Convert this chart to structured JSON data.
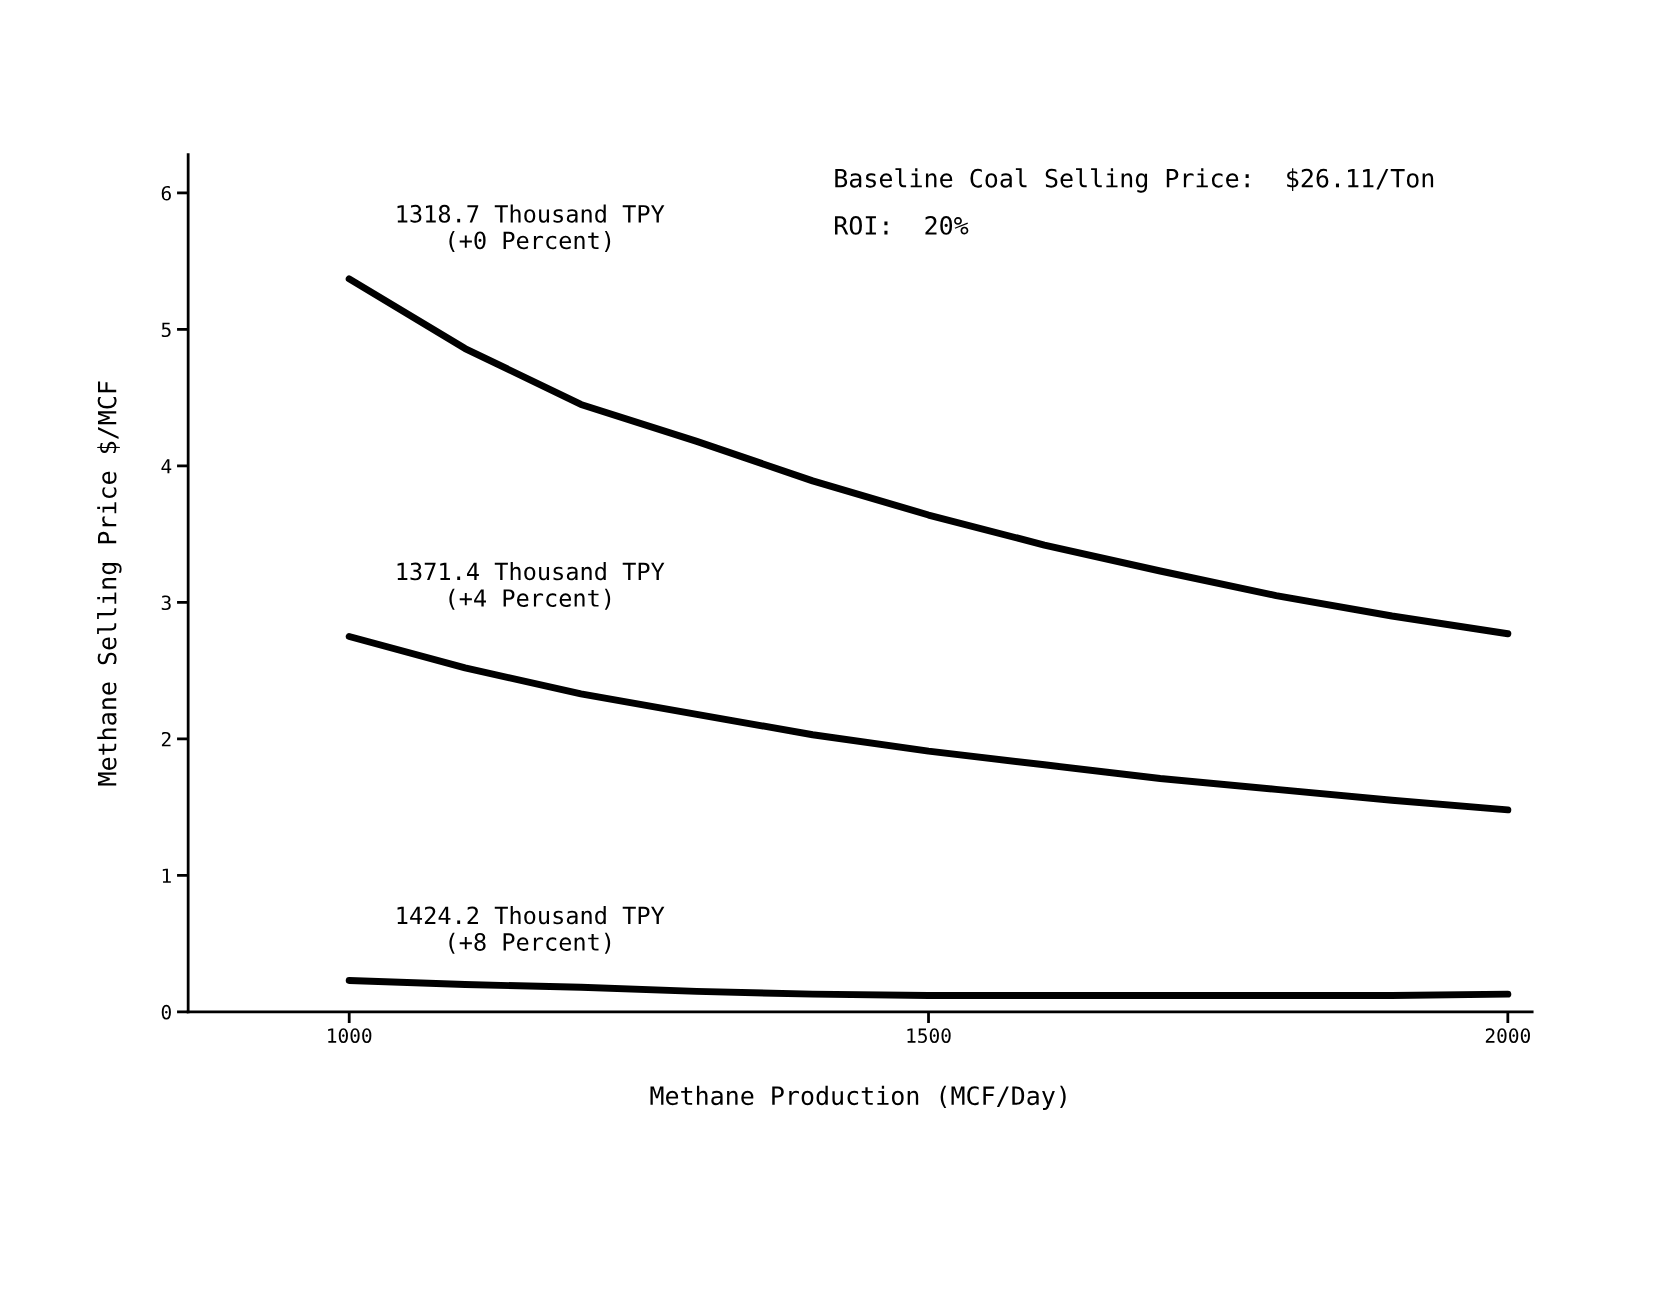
{
  "chart_data": {
    "type": "line",
    "xlabel": "Methane Production (MCF/Day)",
    "ylabel": "Methane Selling Price $/MCF",
    "annotations": [
      "Baseline Coal Selling Price:  $26.11/Ton",
      "ROI:  20%"
    ],
    "x": [
      1000,
      1100,
      1200,
      1300,
      1400,
      1500,
      1600,
      1700,
      1800,
      1900,
      2000
    ],
    "series": [
      {
        "name": "1318.7 Thousand TPY\n(+0 Percent)",
        "color": "#000000",
        "values": [
          5.37,
          4.86,
          4.45,
          4.18,
          3.89,
          3.64,
          3.42,
          3.23,
          3.05,
          2.9,
          2.77
        ]
      },
      {
        "name": "1371.4 Thousand TPY\n(+4 Percent)",
        "color": "#000000",
        "values": [
          2.75,
          2.52,
          2.33,
          2.18,
          2.03,
          1.91,
          1.81,
          1.71,
          1.63,
          1.55,
          1.48
        ]
      },
      {
        "name": "1424.2 Thousand TPY\n(+8 Percent)",
        "color": "#000000",
        "values": [
          0.23,
          0.2,
          0.18,
          0.15,
          0.13,
          0.12,
          0.12,
          0.12,
          0.12,
          0.12,
          0.13
        ]
      }
    ],
    "xlim": [
      861,
      2021
    ],
    "ylim": [
      0,
      6.28
    ],
    "xticks": [
      1000,
      1500,
      2000
    ],
    "yticks": [
      0,
      1,
      2,
      3,
      4,
      5,
      6
    ],
    "grid": false,
    "legend": false,
    "marker": "none",
    "line_style": "solid"
  }
}
